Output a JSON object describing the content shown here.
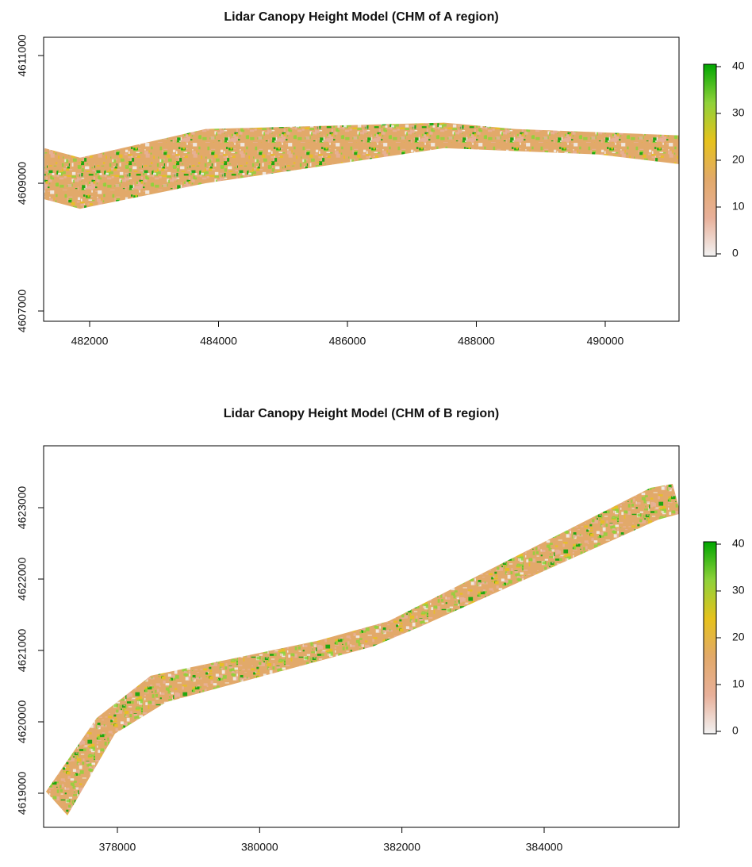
{
  "chart_data": [
    {
      "type": "raster",
      "title": "Lidar Canopy Height Model (CHM of A region)",
      "x": [
        481300,
        481850,
        483800,
        487500,
        488600,
        491150,
        491150,
        489900,
        487500,
        483800,
        481850,
        481300
      ],
      "y": [
        4609550,
        4609400,
        4609850,
        4609950,
        4609850,
        4609750,
        4609300,
        4609450,
        4609550,
        4609000,
        4608600,
        4608750
      ],
      "xlim": [
        481286,
        491145
      ],
      "ylim": [
        4606839,
        4611286
      ],
      "xticks": [
        482000,
        484000,
        486000,
        488000,
        490000
      ],
      "yticks": [
        4607000,
        4609000,
        4611000
      ],
      "zlim": [
        0,
        40
      ],
      "zticks": [
        0,
        10,
        20,
        30,
        40
      ],
      "colors": [
        "#f2f2f2",
        "#e8b09a",
        "#e2a96a",
        "#e6c21c",
        "#8fd23a",
        "#00a600"
      ]
    },
    {
      "type": "raster",
      "title": "Lidar Canopy Height Model (CHM of B region)",
      "x": [
        376996,
        377710,
        378469,
        380810,
        381814,
        385494,
        385806,
        385896,
        385896,
        385606,
        382260,
        381591,
        378692,
        377967,
        377298
      ],
      "y": [
        4619023,
        4620056,
        4620645,
        4621134,
        4621411,
        4623278,
        4623334,
        4623000,
        4622911,
        4622834,
        4621334,
        4621056,
        4620278,
        4619834,
        4618689
      ],
      "xlim": [
        376963,
        385896
      ],
      "ylim": [
        4618522,
        4623867
      ],
      "xticks": [
        378000,
        380000,
        382000,
        384000
      ],
      "yticks": [
        4619000,
        4620000,
        4621000,
        4622000,
        4623000
      ],
      "zlim": [
        0,
        40
      ],
      "zticks": [
        0,
        10,
        20,
        30,
        40
      ],
      "colors": [
        "#f2f2f2",
        "#e8b09a",
        "#e2a96a",
        "#e6c21c",
        "#8fd23a",
        "#00a600"
      ]
    }
  ]
}
